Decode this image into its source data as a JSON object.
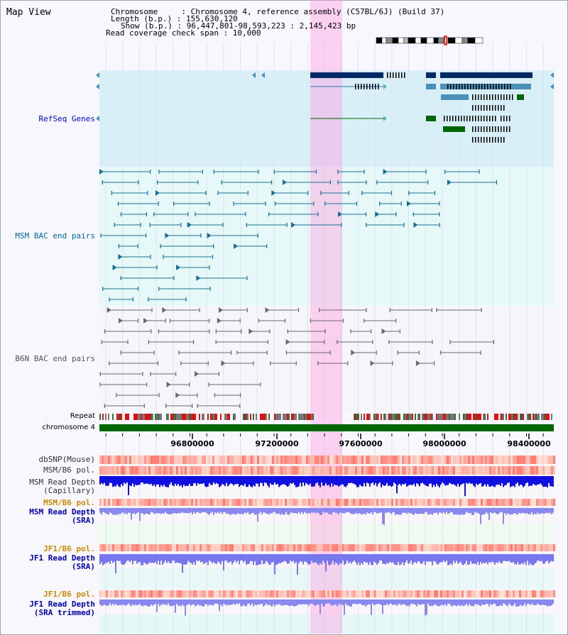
{
  "page_title": "Map View",
  "info": {
    "chromosome": "Chromosome     : Chromosome 4, reference assembly (C57BL/6J) (Build 37)",
    "length": "Length (b.p.) : 155,630,120",
    "show": "Show (b.p.) : 96,447,801-98,593,223 : 2,145,423 bp",
    "coverage": "Read coverage check span : 10,000"
  },
  "tracks": {
    "refseq": "RefSeq Genes",
    "msm_bac": "MSM BAC end pairs",
    "b6n_bac": "B6N BAC end pairs",
    "repeat": "Repeat",
    "chromosome": "chromosome 4",
    "dbsnp": "dbSNP(Mouse)",
    "msm_b6_pol_1": "MSM/B6 pol.",
    "msm_read_depth_cap_1": "MSM Read Depth",
    "msm_read_depth_cap_2": "(Capillary)",
    "msm_b6_pol_2": "MSM/B6 pol.",
    "msm_read_depth_sra_1": "MSM Read Depth",
    "msm_read_depth_sra_2": "(SRA)",
    "jf1_b6_pol_1": "JF1/B6 pol.",
    "jf1_read_depth_sra_1": "JF1 Read Depth",
    "jf1_read_depth_sra_2": "(SRA)",
    "jf1_b6_pol_2": "JF1/B6 pol.",
    "jf1_read_depth_trim_1": "JF1 Read Depth",
    "jf1_read_depth_trim_2": "(SRA trimmed)"
  },
  "axis_ticks": [
    "96800000",
    "97200000",
    "97600000",
    "98000000",
    "98400000"
  ],
  "colors": {
    "refseq_label": "#0000cc",
    "msm_label": "#006699",
    "b6n_label": "#555555",
    "pol_label": "#cc8800",
    "depth_label": "#0000aa",
    "highlight": "#ff99dd",
    "chromosome_bar": "#006600"
  }
}
